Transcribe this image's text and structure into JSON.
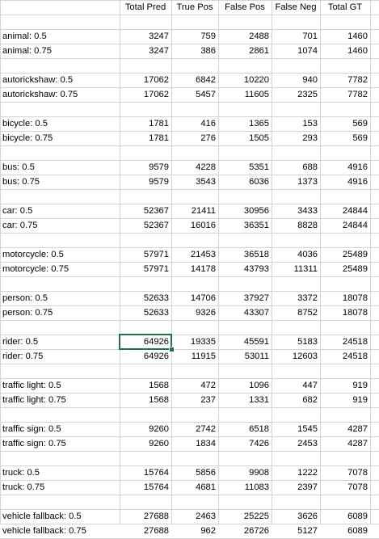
{
  "headers": [
    "",
    "Total Pred",
    "True Pos",
    "False Pos",
    "False Neg",
    "Total GT"
  ],
  "selected_cell": {
    "row": 22,
    "col": 1
  },
  "rows": [
    [
      "",
      "",
      "",
      "",
      "",
      ""
    ],
    [
      "animal: 0.5",
      "3247",
      "759",
      "2488",
      "701",
      "1460"
    ],
    [
      "animal: 0.75",
      "3247",
      "386",
      "2861",
      "1074",
      "1460"
    ],
    [
      "",
      "",
      "",
      "",
      "",
      ""
    ],
    [
      "autorickshaw: 0.5",
      "17062",
      "6842",
      "10220",
      "940",
      "7782"
    ],
    [
      "autorickshaw: 0.75",
      "17062",
      "5457",
      "11605",
      "2325",
      "7782"
    ],
    [
      "",
      "",
      "",
      "",
      "",
      ""
    ],
    [
      "bicycle: 0.5",
      "1781",
      "416",
      "1365",
      "153",
      "569"
    ],
    [
      "bicycle: 0.75",
      "1781",
      "276",
      "1505",
      "293",
      "569"
    ],
    [
      "",
      "",
      "",
      "",
      "",
      ""
    ],
    [
      "bus: 0.5",
      "9579",
      "4228",
      "5351",
      "688",
      "4916"
    ],
    [
      "bus: 0.75",
      "9579",
      "3543",
      "6036",
      "1373",
      "4916"
    ],
    [
      "",
      "",
      "",
      "",
      "",
      ""
    ],
    [
      "car: 0.5",
      "52367",
      "21411",
      "30956",
      "3433",
      "24844"
    ],
    [
      "car: 0.75",
      "52367",
      "16016",
      "36351",
      "8828",
      "24844"
    ],
    [
      "",
      "",
      "",
      "",
      "",
      ""
    ],
    [
      "motorcycle: 0.5",
      "57971",
      "21453",
      "36518",
      "4036",
      "25489"
    ],
    [
      "motorcycle: 0.75",
      "57971",
      "14178",
      "43793",
      "11311",
      "25489"
    ],
    [
      "",
      "",
      "",
      "",
      "",
      ""
    ],
    [
      "person: 0.5",
      "52633",
      "14706",
      "37927",
      "3372",
      "18078"
    ],
    [
      "person: 0.75",
      "52633",
      "9326",
      "43307",
      "8752",
      "18078"
    ],
    [
      "",
      "",
      "",
      "",
      "",
      ""
    ],
    [
      "rider: 0.5",
      "64926",
      "19335",
      "45591",
      "5183",
      "24518"
    ],
    [
      "rider: 0.75",
      "64926",
      "11915",
      "53011",
      "12603",
      "24518"
    ],
    [
      "",
      "",
      "",
      "",
      "",
      ""
    ],
    [
      "traffic light: 0.5",
      "1568",
      "472",
      "1096",
      "447",
      "919"
    ],
    [
      "traffic light: 0.75",
      "1568",
      "237",
      "1331",
      "682",
      "919"
    ],
    [
      "",
      "",
      "",
      "",
      "",
      ""
    ],
    [
      "traffic sign: 0.5",
      "9260",
      "2742",
      "6518",
      "1545",
      "4287"
    ],
    [
      "traffic sign: 0.75",
      "9260",
      "1834",
      "7426",
      "2453",
      "4287"
    ],
    [
      "",
      "",
      "",
      "",
      "",
      ""
    ],
    [
      "truck: 0.5",
      "15764",
      "5856",
      "9908",
      "1222",
      "7078"
    ],
    [
      "truck: 0.75",
      "15764",
      "4681",
      "11083",
      "2397",
      "7078"
    ],
    [
      "",
      "",
      "",
      "",
      "",
      ""
    ],
    [
      "vehicle fallback: 0.5",
      "27688",
      "2463",
      "25225",
      "3626",
      "6089"
    ],
    [
      "vehicle fallback: 0.75",
      "27688",
      "962",
      "26726",
      "5127",
      "6089"
    ]
  ]
}
